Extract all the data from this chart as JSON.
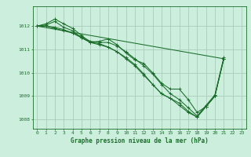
{
  "title": "Graphe pression niveau de la mer (hPa)",
  "background_color": "#cceedd",
  "grid_color": "#aaccbb",
  "line_color": "#1a6e2a",
  "x_hours": [
    0,
    1,
    2,
    3,
    4,
    5,
    6,
    7,
    8,
    9,
    10,
    11,
    12,
    13,
    14,
    15,
    16,
    17,
    18,
    19,
    20,
    21,
    22,
    23
  ],
  "series": [
    [
      1012.0,
      1012.1,
      1012.3,
      1012.1,
      1011.9,
      1011.6,
      1011.3,
      1011.35,
      1011.45,
      1011.2,
      1010.85,
      1010.55,
      1010.4,
      1010.0,
      1009.55,
      1009.3,
      1009.3,
      1008.85,
      1008.3,
      1008.55,
      1009.0,
      1010.6,
      null,
      null
    ],
    [
      1012.0,
      1012.05,
      1012.2,
      1011.95,
      1011.8,
      1011.5,
      1011.3,
      1011.25,
      1011.1,
      1010.9,
      1010.65,
      1010.35,
      1009.95,
      1009.5,
      1009.1,
      1008.9,
      1008.7,
      1008.35,
      1008.1,
      1008.55,
      1009.0,
      1010.6,
      null,
      null
    ],
    [
      1012.0,
      1012.0,
      1011.9,
      1011.8,
      1011.7,
      1011.5,
      1011.3,
      1011.2,
      1011.1,
      1010.9,
      1010.6,
      1010.3,
      1009.9,
      1009.5,
      1009.1,
      1008.9,
      1008.6,
      1008.3,
      1008.1,
      1008.55,
      1009.0,
      1010.6,
      null,
      null
    ],
    [
      1012.0,
      1012.0,
      1011.95,
      1011.85,
      1011.7,
      1011.55,
      1011.35,
      1011.3,
      1011.3,
      1011.15,
      1010.9,
      1010.6,
      1010.3,
      1009.95,
      1009.5,
      1009.1,
      1008.85,
      1008.5,
      1008.15,
      1008.6,
      1009.05,
      1010.65,
      null,
      null
    ]
  ],
  "straight_line": [
    1012.0,
    null,
    null,
    null,
    null,
    null,
    null,
    null,
    null,
    null,
    null,
    null,
    null,
    null,
    null,
    null,
    null,
    null,
    null,
    null,
    null,
    1010.6,
    null,
    null
  ],
  "ylim": [
    1007.6,
    1012.85
  ],
  "yticks": [
    1008,
    1009,
    1010,
    1011,
    1012
  ],
  "xlim": [
    -0.5,
    23.5
  ],
  "figsize": [
    3.2,
    2.0
  ],
  "dpi": 100
}
